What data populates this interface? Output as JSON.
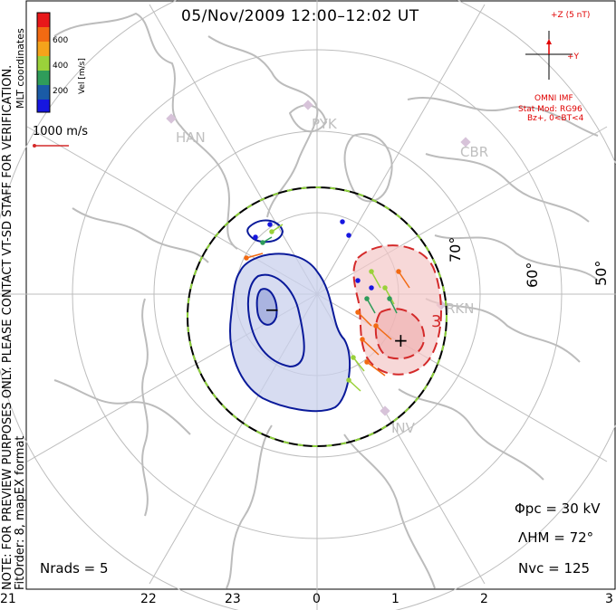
{
  "title": "05/Nov/2009 12:00–12:02 UT",
  "note_line1": "NOTE: FOR PREVIEW PURPOSES ONLY. PLEASE CONTACT VT-SD STAFF FOR VERIFICATION.",
  "note_line2": "FitOrder: 8, mapEX format",
  "colorbar": {
    "ticks": [
      "600",
      "400",
      "200"
    ],
    "unit_label": "Vel [m/s]",
    "coord_label": "MLT coordinates",
    "colors": [
      "#e8181a",
      "#f26a12",
      "#f5a31b",
      "#9ad13a",
      "#2f9c5a",
      "#1a5ba6",
      "#1616e0"
    ]
  },
  "vector_scale": "1000 m/s",
  "imf": {
    "z_label": "+Z (5 nT)",
    "y_label": "+Y",
    "source": "OMNI IMF",
    "model": "Stat Mod: RG96",
    "condition": "Bz+, 0<BT<4"
  },
  "stations": [
    "HAN",
    "PYK",
    "CBR",
    "RKN",
    "INV"
  ],
  "latitude_labels": [
    "70°",
    "60°",
    "50°"
  ],
  "contour_labels": {
    "negative": "−",
    "positive": "+",
    "three": "3"
  },
  "stats": {
    "phi_pc": "Φpc = 30 kV",
    "lambda_hm": "ΛHM = 72°",
    "n_vc": "Nvc = 125",
    "n_rads": "Nrads = 5"
  },
  "mlt_ticks": [
    "21",
    "22",
    "23",
    "0",
    "1",
    "2",
    "3"
  ],
  "colors": {
    "map_grey": "#bfbfbf",
    "neg_contour": "#0a1a9a",
    "pos_contour": "#d42a2a",
    "neg_fill": "#c9d0ec",
    "pos_fill": "#f3c8c8",
    "imf_red": "#e00000"
  }
}
